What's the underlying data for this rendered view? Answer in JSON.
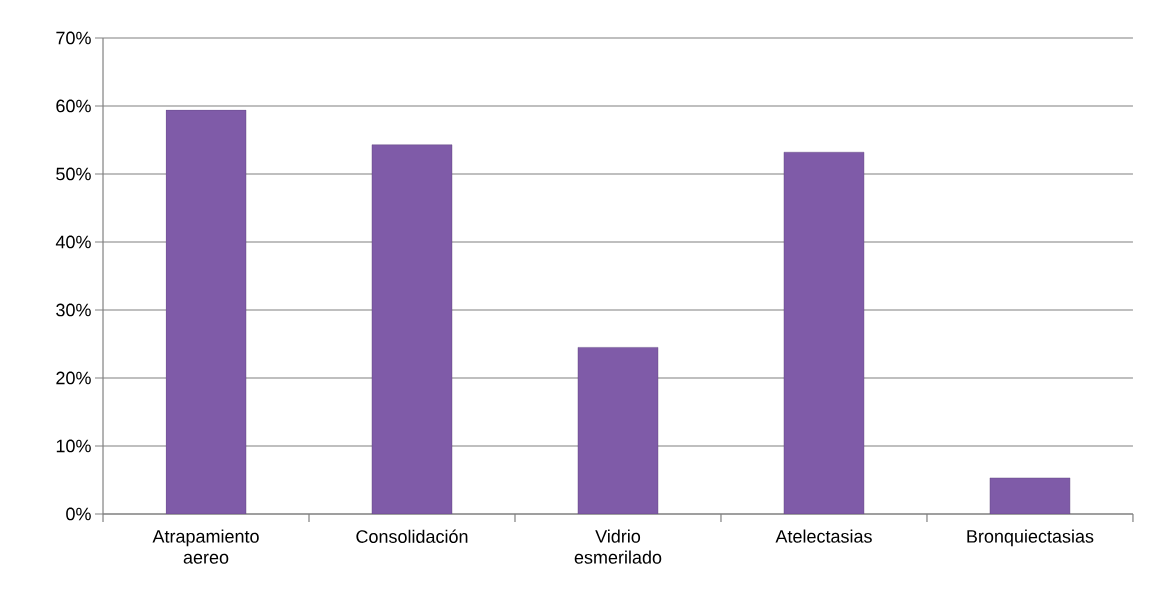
{
  "chart_data": {
    "type": "bar",
    "categories": [
      "Atrapamiento aereo",
      "Consolidación",
      "Vidrio esmerilado",
      "Atelectasias",
      "Bronquiectasias"
    ],
    "values": [
      59.4,
      54.3,
      24.5,
      53.2,
      5.3
    ],
    "color": "#7f5ba8",
    "ylim": [
      0,
      70
    ],
    "yticks": [
      {
        "value": 0,
        "label": "0%"
      },
      {
        "value": 10,
        "label": "10%"
      },
      {
        "value": 20,
        "label": "20%"
      },
      {
        "value": 30,
        "label": "30%"
      },
      {
        "value": 40,
        "label": "40%"
      },
      {
        "value": 50,
        "label": "50%"
      },
      {
        "value": 60,
        "label": "60%"
      },
      {
        "value": 70,
        "label": "70%"
      }
    ],
    "grid": "y"
  }
}
